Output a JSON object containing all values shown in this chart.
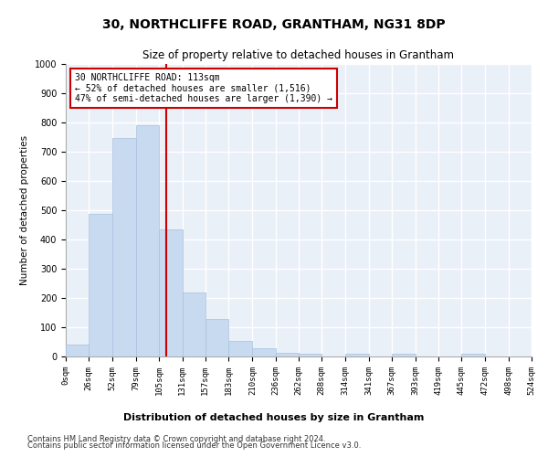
{
  "title": "30, NORTHCLIFFE ROAD, GRANTHAM, NG31 8DP",
  "subtitle": "Size of property relative to detached houses in Grantham",
  "xlabel": "Distribution of detached houses by size in Grantham",
  "ylabel": "Number of detached properties",
  "bar_color": "#c8daf0",
  "bar_edge_color": "#a8c0e0",
  "background_color": "#eaf0f8",
  "grid_color": "#ffffff",
  "vline_x": 113,
  "vline_color": "#cc0000",
  "annotation_line1": "30 NORTHCLIFFE ROAD: 113sqm",
  "annotation_line2": "← 52% of detached houses are smaller (1,516)",
  "annotation_line3": "47% of semi-detached houses are larger (1,390) →",
  "annotation_box_color": "#ffffff",
  "annotation_border_color": "#cc0000",
  "bin_edges": [
    0,
    26,
    52,
    79,
    105,
    131,
    157,
    183,
    210,
    236,
    262,
    288,
    314,
    341,
    367,
    393,
    419,
    445,
    472,
    498,
    524
  ],
  "bar_heights": [
    42,
    487,
    748,
    792,
    435,
    220,
    127,
    52,
    27,
    12,
    10,
    0,
    8,
    0,
    8,
    0,
    0,
    8,
    0,
    0
  ],
  "ylim": [
    0,
    1000
  ],
  "yticks": [
    0,
    100,
    200,
    300,
    400,
    500,
    600,
    700,
    800,
    900,
    1000
  ],
  "footnote1": "Contains HM Land Registry data © Crown copyright and database right 2024.",
  "footnote2": "Contains public sector information licensed under the Open Government Licence v3.0."
}
